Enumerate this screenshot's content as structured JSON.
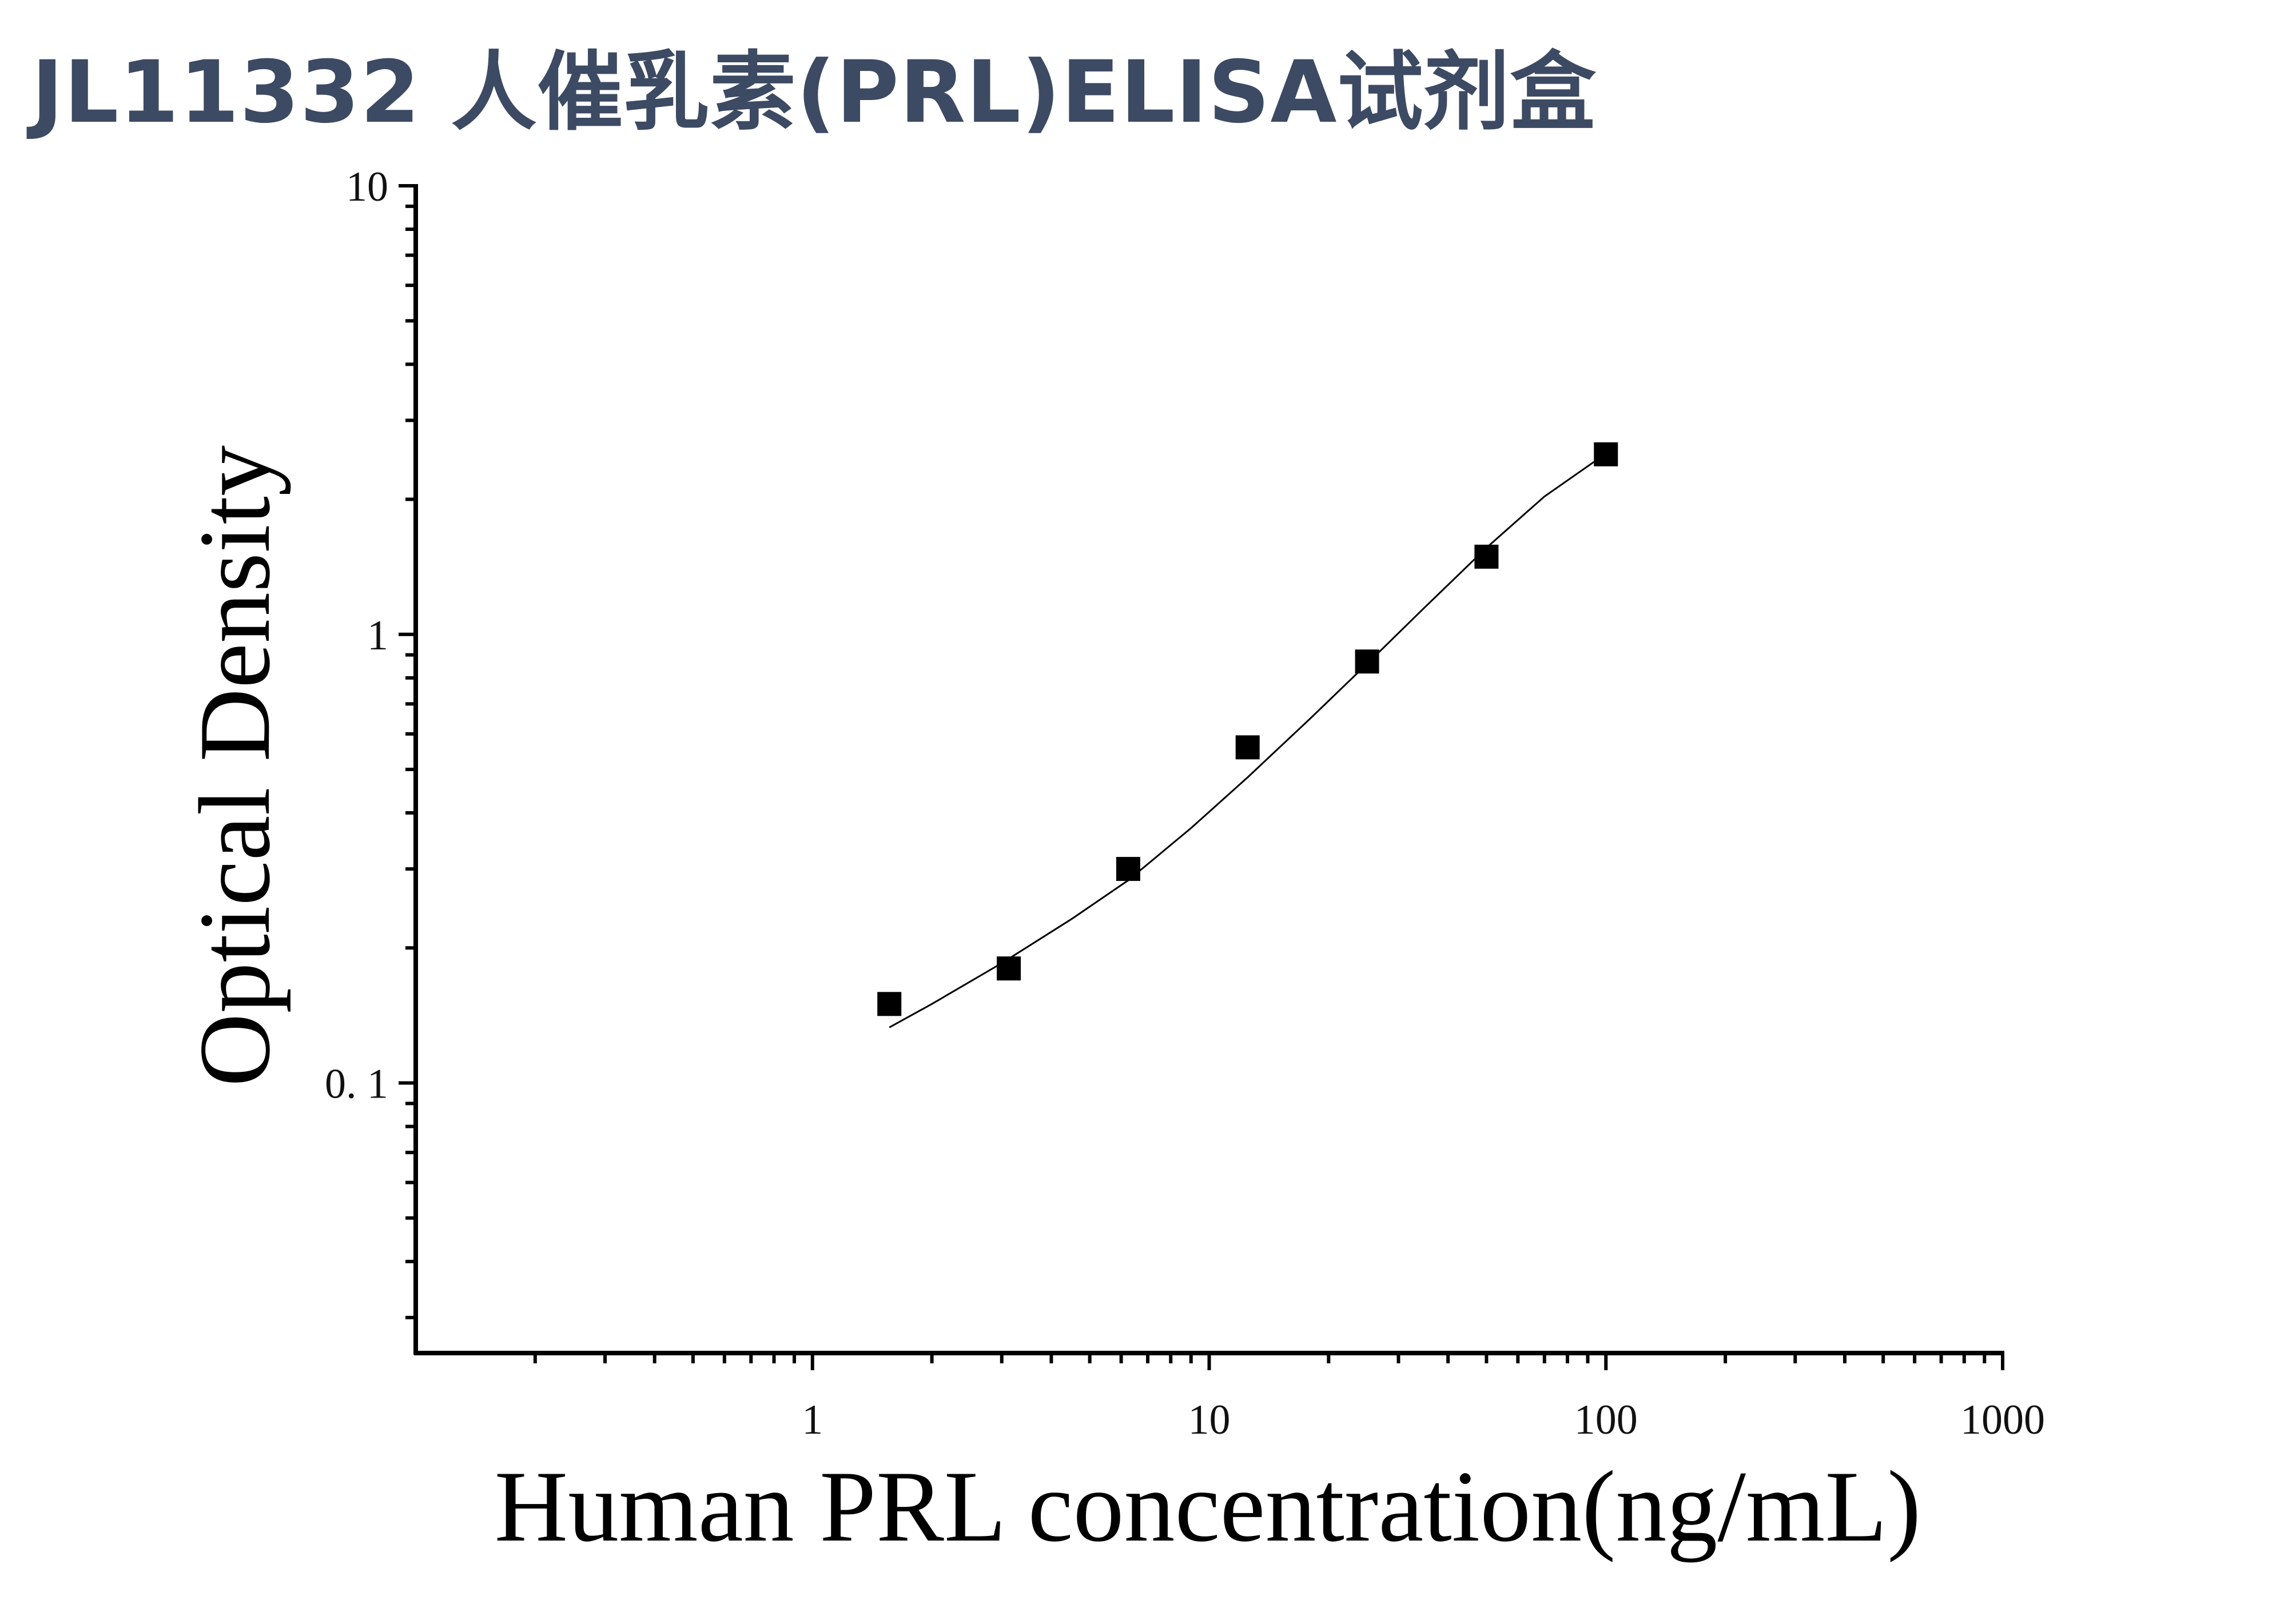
{
  "title": "JL11332 人催乳素(PRL)ELISA试剂盒",
  "chart_data": {
    "type": "scatter",
    "title": "JL11332 人催乳素(PRL)ELISA试剂盒",
    "xlabel": "Human PRL concentration(ng/mL)",
    "ylabel": "Optical Density",
    "x_scale": "log",
    "y_scale": "log",
    "xlim": [
      0.1,
      1000
    ],
    "ylim": [
      0.025,
      10
    ],
    "x_ticks": [
      {
        "value": 1,
        "label": "1"
      },
      {
        "value": 10,
        "label": "10"
      },
      {
        "value": 100,
        "label": "100"
      },
      {
        "value": 1000,
        "label": "1000"
      }
    ],
    "y_ticks": [
      {
        "value": 0.1,
        "label": "0. 1"
      },
      {
        "value": 1,
        "label": "1"
      },
      {
        "value": 10,
        "label": "10"
      }
    ],
    "grid": false,
    "legend": "none",
    "series": [
      {
        "marker": "square",
        "color": "#000000",
        "x": [
          1.5625,
          3.125,
          6.25,
          12.5,
          25,
          50,
          100
        ],
        "y": [
          0.15,
          0.18,
          0.3,
          0.56,
          0.87,
          1.49,
          2.52
        ]
      }
    ],
    "fit_curve": {
      "color": "#000000",
      "x": [
        1.5625,
        2,
        3,
        4.5,
        6.25,
        9,
        12.5,
        18,
        25,
        35,
        50,
        70,
        100
      ],
      "y": [
        0.133,
        0.15,
        0.185,
        0.232,
        0.283,
        0.37,
        0.48,
        0.65,
        0.86,
        1.15,
        1.56,
        2.03,
        2.53
      ]
    }
  }
}
